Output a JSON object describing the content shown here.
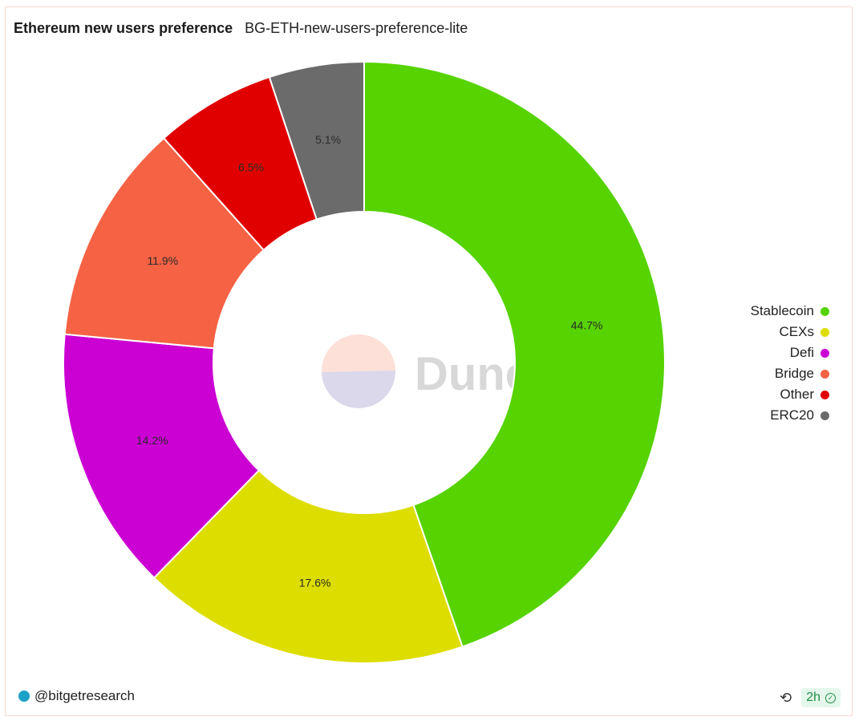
{
  "header": {
    "title": "Ethereum new users preference",
    "subtitle": "BG-ETH-new-users-preference-lite"
  },
  "watermark": {
    "text": "Dune"
  },
  "footer": {
    "author": "@bitgetresearch",
    "freshness": "2h"
  },
  "chart_data": {
    "type": "pie",
    "donut": true,
    "categories": [
      "Stablecoin",
      "CEXs",
      "Defi",
      "Bridge",
      "Other",
      "ERC20"
    ],
    "values": [
      44.7,
      17.6,
      14.2,
      11.9,
      6.5,
      5.1
    ],
    "data_labels": [
      "44.7%",
      "17.6%",
      "14.2%",
      "11.9%",
      "6.5%",
      "5.1%"
    ],
    "colors": [
      "#56d300",
      "#dedd00",
      "#cb00d3",
      "#f56244",
      "#e10000",
      "#6b6b6b"
    ],
    "legend_placement": "right"
  }
}
